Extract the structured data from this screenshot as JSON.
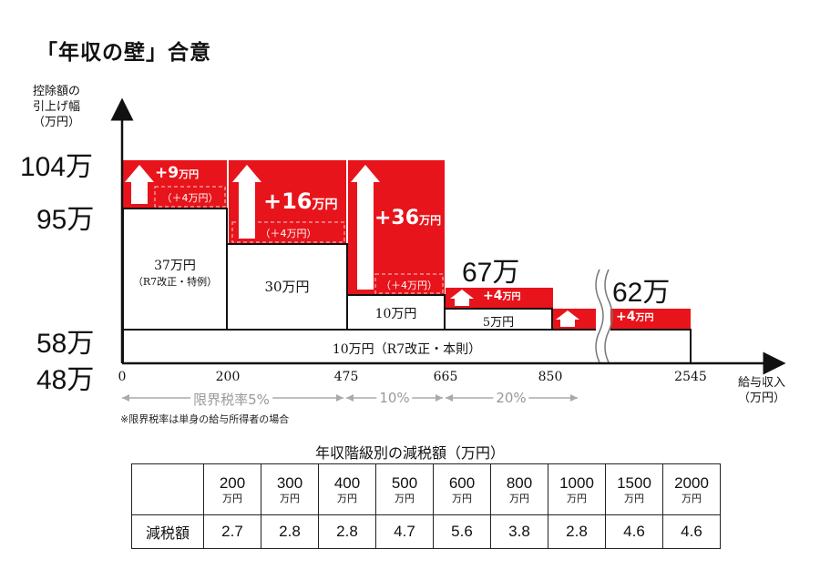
{
  "title": "「年収の壁」合意",
  "y_axis_label": [
    "控除額の",
    "引上げ幅",
    "（万円）"
  ],
  "x_axis_label": [
    "給与収入",
    "（万円）"
  ],
  "y_values": [
    "104万",
    "95万",
    "58万",
    "48万"
  ],
  "callouts": [
    "67万",
    "62万"
  ],
  "x_ticks": [
    "0",
    "200",
    "475",
    "665",
    "850",
    "2545"
  ],
  "rate_bands": [
    "限界税率5%",
    "10%",
    "20%"
  ],
  "note": "※限界税率は単身の給与所得者の場合",
  "chart_data": {
    "type": "bar",
    "xlabel": "給与収入（万円）",
    "ylabel": "控除額の引上げ幅（万円）",
    "income_bands": [
      {
        "from": 0,
        "to": 200,
        "base": 48,
        "white_label": [
          "37万円",
          "（R7改正・特例）"
        ],
        "white_value": 37,
        "red_label": "+9",
        "red_unit": "万円",
        "red_sub": "（＋4万円）",
        "red_value": 9,
        "total": 104
      },
      {
        "from": 200,
        "to": 475,
        "base": 48,
        "white_label": [
          "30万円"
        ],
        "white_value": 30,
        "red_label": "+16",
        "red_unit": "万円",
        "red_sub": "（＋4万円）",
        "red_value": 16,
        "total": 104
      },
      {
        "from": 475,
        "to": 665,
        "base": 48,
        "white_label": [
          "10万円"
        ],
        "white_value": 10,
        "red_label": "+36",
        "red_unit": "万円",
        "red_sub": "（＋4万円）",
        "red_value": 36,
        "total": 104
      },
      {
        "from": 665,
        "to": 850,
        "base": 48,
        "white_label": [
          "5万円"
        ],
        "white_value": 5,
        "red_label": "+4",
        "red_unit": "万円",
        "red_value": 4,
        "total": 67
      },
      {
        "from": 850,
        "to": 2545,
        "base": 48,
        "white_label": [],
        "white_value": 0,
        "red_label": "+4",
        "red_unit": "万円",
        "red_value": 4,
        "total": 62
      }
    ],
    "base_label": "10万円（R7改正・本則）",
    "base_value": 10
  },
  "table": {
    "title": "年収階級別の減税額（万円）",
    "row_label": "減税額",
    "unit": "万円",
    "incomes": [
      "200",
      "300",
      "400",
      "500",
      "600",
      "800",
      "1000",
      "1500",
      "2000"
    ],
    "values": [
      "2.7",
      "2.8",
      "2.8",
      "4.7",
      "5.6",
      "3.8",
      "2.8",
      "4.6",
      "4.6"
    ]
  },
  "colors": {
    "red": "#e8141b",
    "axis": "#111111",
    "rate": "#999999"
  }
}
